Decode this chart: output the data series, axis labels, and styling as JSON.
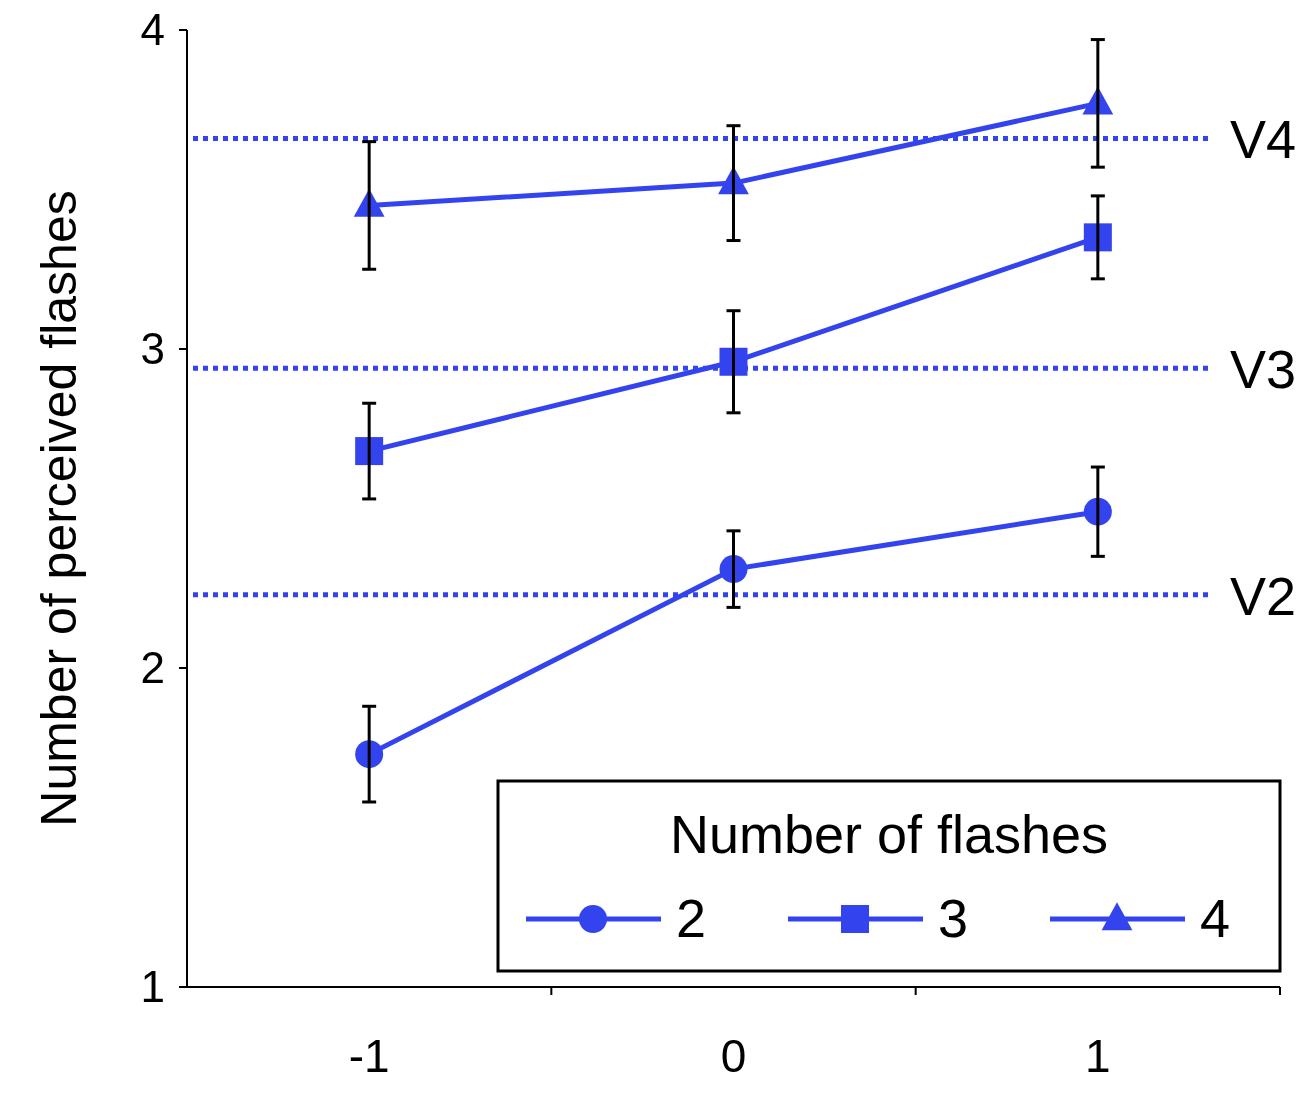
{
  "chart_data": {
    "type": "line",
    "ylabel": "Number of perceived flashes",
    "legend_title": "Number of flashes",
    "categories": [
      "-1",
      "0",
      "1"
    ],
    "ylim": [
      1,
      4
    ],
    "yticks": [
      1,
      2,
      3,
      4
    ],
    "legend": "bottom right",
    "line_style": "solid",
    "series": [
      {
        "name": "2",
        "color": "#3344ee",
        "marker": "circle",
        "values": [
          1.73,
          2.31,
          2.49
        ],
        "errors": [
          0.15,
          0.12,
          0.14
        ]
      },
      {
        "name": "3",
        "color": "#3344ee",
        "marker": "square",
        "values": [
          2.68,
          2.96,
          3.35
        ],
        "errors": [
          0.15,
          0.16,
          0.13
        ]
      },
      {
        "name": "4",
        "color": "#3344ee",
        "marker": "triangle",
        "values": [
          3.45,
          3.52,
          3.77
        ],
        "errors": [
          0.2,
          0.18,
          0.2
        ]
      }
    ],
    "ref_lines": [
      {
        "axis": "y",
        "value": 3.66,
        "label": "V4",
        "color": "#3344ee",
        "line_style": "dotted"
      },
      {
        "axis": "y",
        "value": 2.94,
        "label": "V3",
        "color": "#3344ee",
        "line_style": "dotted"
      },
      {
        "axis": "y",
        "value": 2.23,
        "label": "V2",
        "color": "#3344ee",
        "line_style": "dotted"
      }
    ]
  }
}
